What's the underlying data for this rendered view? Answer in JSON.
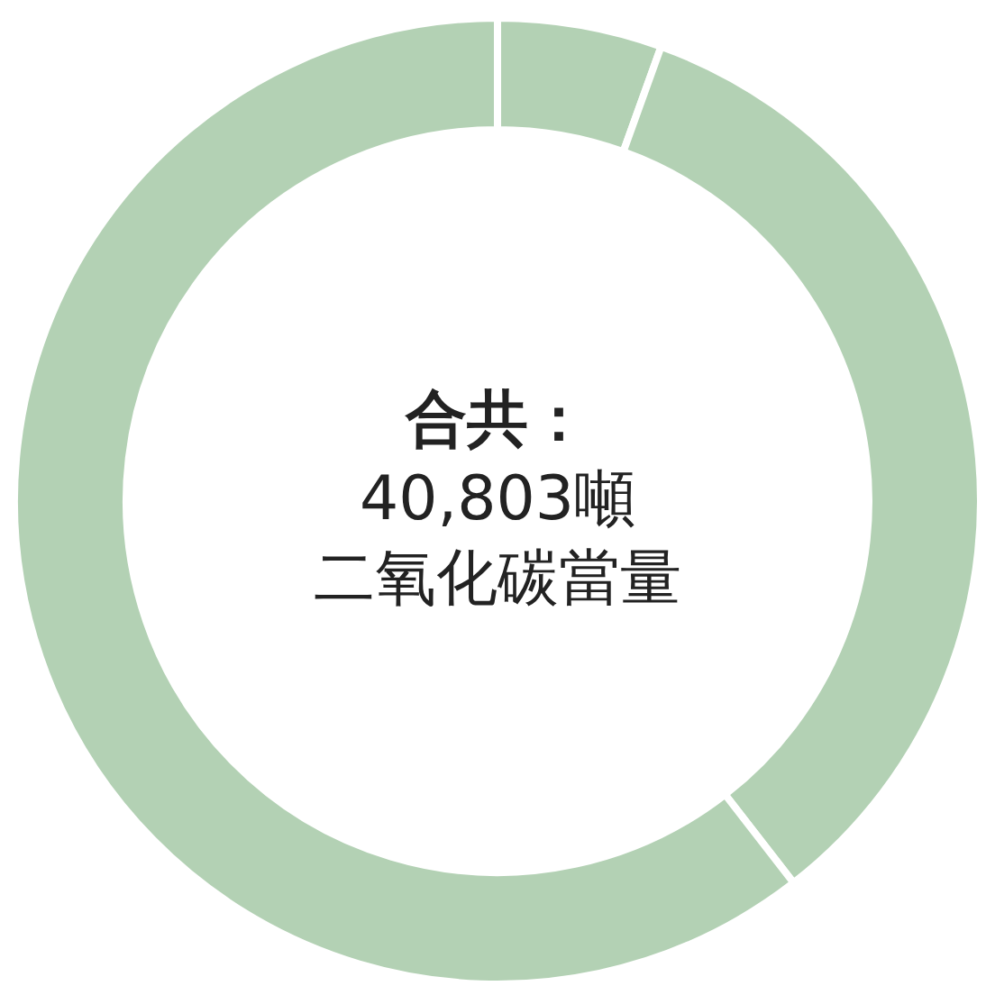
{
  "chart_data": {
    "type": "donut",
    "categories": [
      null,
      null,
      null
    ],
    "values": [
      5.5,
      34,
      60.5
    ],
    "colors": [
      "#b3d1b4",
      "#b3d1b4",
      "#b3d1b4"
    ],
    "annotations": [
      "合共：",
      "40,803噸",
      "二氧化碳當量"
    ]
  }
}
